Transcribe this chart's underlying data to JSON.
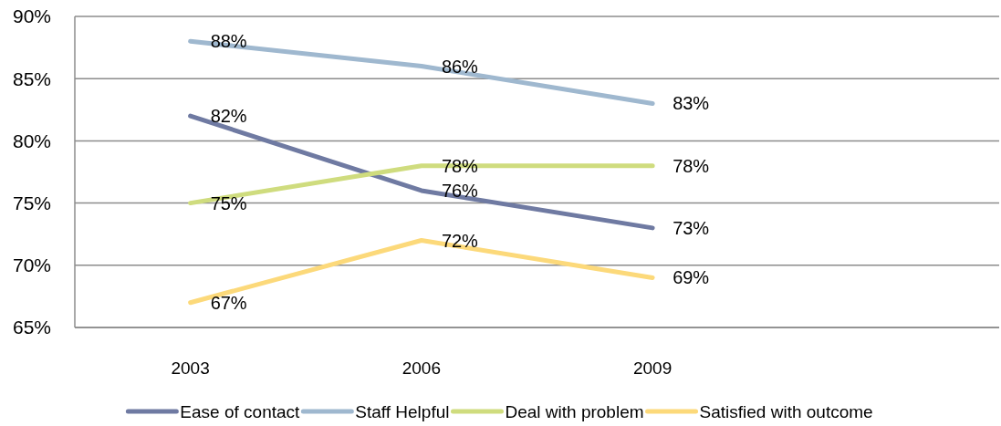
{
  "chart_data": {
    "type": "line",
    "categories": [
      "2003",
      "2006",
      "2009",
      null
    ],
    "series": [
      {
        "name": "Ease of contact",
        "color": "#6f7aa2",
        "values": [
          82,
          76,
          73,
          null
        ],
        "value_labels": [
          "82%",
          "76%",
          "73%",
          null
        ]
      },
      {
        "name": "Staff Helpful",
        "color": "#9fb8cf",
        "values": [
          88,
          86,
          83,
          null
        ],
        "value_labels": [
          "88%",
          "86%",
          "83%",
          null
        ]
      },
      {
        "name": "Deal with problem",
        "color": "#cfdc7e",
        "values": [
          75,
          78,
          78,
          null
        ],
        "value_labels": [
          "75%",
          "78%",
          "78%",
          null
        ]
      },
      {
        "name": "Satisfied with outcome",
        "color": "#fcd97a",
        "values": [
          67,
          72,
          69,
          null
        ],
        "value_labels": [
          "67%",
          "72%",
          "69%",
          null
        ]
      }
    ],
    "ylim": [
      65,
      90
    ],
    "yticks": [
      {
        "value": 65,
        "label": "65%"
      },
      {
        "value": 70,
        "label": "70%"
      },
      {
        "value": 75,
        "label": "75%"
      },
      {
        "value": 80,
        "label": "80%"
      },
      {
        "value": 85,
        "label": "85%"
      },
      {
        "value": 90,
        "label": "90%"
      }
    ],
    "grid": "y",
    "legend": "bottom"
  }
}
